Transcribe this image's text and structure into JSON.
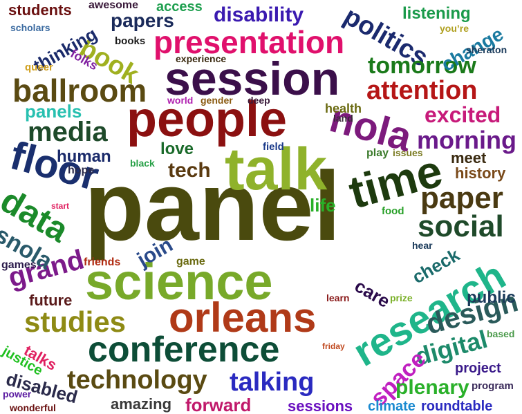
{
  "words": [
    {
      "text": "panel",
      "color": "#4a4a0e",
      "rotate": 0
    },
    {
      "text": "talk",
      "color": "#8fb22b",
      "rotate": 0
    },
    {
      "text": "people",
      "color": "#8b1010",
      "rotate": 0
    },
    {
      "text": "session",
      "color": "#3b0f4a",
      "rotate": 0
    },
    {
      "text": "science",
      "color": "#78a92a",
      "rotate": 0
    },
    {
      "text": "orleans",
      "color": "#b03a18",
      "rotate": 0
    },
    {
      "text": "research",
      "color": "#1fb58a",
      "rotate": -30
    },
    {
      "text": "time",
      "color": "#1d3a0e",
      "rotate": -15
    },
    {
      "text": "presentation",
      "color": "#e0106c",
      "rotate": 0
    },
    {
      "text": "conference",
      "color": "#0d4d37",
      "rotate": 0
    },
    {
      "text": "floor",
      "color": "#1a2f6e",
      "rotate": 15
    },
    {
      "text": "nola",
      "color": "#7c1a7c",
      "rotate": 15
    },
    {
      "text": "ballroom",
      "color": "#5a4a12",
      "rotate": 0
    },
    {
      "text": "attention",
      "color": "#b51616",
      "rotate": 0
    },
    {
      "text": "data",
      "color": "#1b8a2a",
      "rotate": 30
    },
    {
      "text": "studies",
      "color": "#8e8a14",
      "rotate": 0
    },
    {
      "text": "media",
      "color": "#1e4a2a",
      "rotate": 0
    },
    {
      "text": "paper",
      "color": "#4a3a12",
      "rotate": 0
    },
    {
      "text": "social",
      "color": "#1f4a2a",
      "rotate": 0
    },
    {
      "text": "technology",
      "color": "#5a4a12",
      "rotate": 0
    },
    {
      "text": "talking",
      "color": "#2a2ac0",
      "rotate": 0
    },
    {
      "text": "design",
      "color": "#2a5a5a",
      "rotate": -15
    },
    {
      "text": "digital",
      "color": "#1d8a6a",
      "rotate": -15
    },
    {
      "text": "politics",
      "color": "#1b2a6e",
      "rotate": 30
    },
    {
      "text": "morning",
      "color": "#6a1a8a",
      "rotate": 0
    },
    {
      "text": "excited",
      "color": "#c71a7a",
      "rotate": 0
    },
    {
      "text": "tomorrow",
      "color": "#1a7a1a",
      "rotate": 0
    },
    {
      "text": "grand",
      "color": "#7c1a8a",
      "rotate": -15
    },
    {
      "text": "snola",
      "color": "#2a5a6a",
      "rotate": 30
    },
    {
      "text": "book",
      "color": "#a0b020",
      "rotate": 30
    },
    {
      "text": "space",
      "color": "#c020c0",
      "rotate": -45
    },
    {
      "text": "plenary",
      "color": "#2ab02a",
      "rotate": 0
    },
    {
      "text": "forward",
      "color": "#c0186a",
      "rotate": 0
    },
    {
      "text": "amazing",
      "color": "#3a3a3a",
      "rotate": 0
    },
    {
      "text": "disabled",
      "color": "#2a2a4a",
      "rotate": 15
    },
    {
      "text": "disability",
      "color": "#3a1ab0",
      "rotate": 0
    },
    {
      "text": "papers",
      "color": "#1a2a5a",
      "rotate": 0
    },
    {
      "text": "thinking",
      "color": "#1a2a6a",
      "rotate": -30
    },
    {
      "text": "students",
      "color": "#6a1010",
      "rotate": 0
    },
    {
      "text": "change",
      "color": "#1a7aa0",
      "rotate": -30
    },
    {
      "text": "listening",
      "color": "#1a9a4a",
      "rotate": 0
    },
    {
      "text": "panels",
      "color": "#28c0b0",
      "rotate": 0
    },
    {
      "text": "human",
      "color": "#1a2a6a",
      "rotate": 0
    },
    {
      "text": "love",
      "color": "#1a6a2a",
      "rotate": 0
    },
    {
      "text": "tech",
      "color": "#5a3a10",
      "rotate": 0
    },
    {
      "text": "meet",
      "color": "#3a2a10",
      "rotate": 0
    },
    {
      "text": "history",
      "color": "#7a4a1a",
      "rotate": 0
    },
    {
      "text": "life",
      "color": "#28b028",
      "rotate": 0
    },
    {
      "text": "join",
      "color": "#2a4a8a",
      "rotate": -30
    },
    {
      "text": "check",
      "color": "#1a6a6a",
      "rotate": -30
    },
    {
      "text": "care",
      "color": "#2a0a4a",
      "rotate": 30
    },
    {
      "text": "public",
      "color": "#1a3a5a",
      "rotate": 0
    },
    {
      "text": "project",
      "color": "#3a1a8a",
      "rotate": 0
    },
    {
      "text": "sessions",
      "color": "#6a10c0",
      "rotate": 0
    },
    {
      "text": "climate",
      "color": "#1a8ad0",
      "rotate": 0
    },
    {
      "text": "roundtable",
      "color": "#2a2ac0",
      "rotate": 0
    },
    {
      "text": "future",
      "color": "#5a1a1a",
      "rotate": 0
    },
    {
      "text": "talks",
      "color": "#e02060",
      "rotate": 30
    },
    {
      "text": "justice",
      "color": "#20c020",
      "rotate": 30
    },
    {
      "text": "health",
      "color": "#6a6a10",
      "rotate": 0
    },
    {
      "text": "access",
      "color": "#20a050",
      "rotate": 0
    },
    {
      "text": "awesome",
      "color": "#3a1a3a",
      "rotate": 0
    },
    {
      "text": "scholars",
      "color": "#3a6aa0",
      "rotate": 0
    },
    {
      "text": "queer",
      "color": "#d0a020",
      "rotate": 0
    },
    {
      "text": "folks",
      "color": "#8020a0",
      "rotate": 30
    },
    {
      "text": "books",
      "color": "#1a1a1a",
      "rotate": 0
    },
    {
      "text": "experience",
      "color": "#3a2a10",
      "rotate": 0
    },
    {
      "text": "world",
      "color": "#b020b0",
      "rotate": 0
    },
    {
      "text": "gender",
      "color": "#8a5a10",
      "rotate": 0
    },
    {
      "text": "deep",
      "color": "#3a1a3a",
      "rotate": 0
    },
    {
      "text": "land",
      "color": "#3a2a3a",
      "rotate": 0
    },
    {
      "text": "field",
      "color": "#1a3a8a",
      "rotate": 0
    },
    {
      "text": "play",
      "color": "#3a7a2a",
      "rotate": 0
    },
    {
      "text": "issues",
      "color": "#7a7a20",
      "rotate": 0
    },
    {
      "text": "hope",
      "color": "#2a2a4a",
      "rotate": 0
    },
    {
      "text": "black",
      "color": "#28a048",
      "rotate": 0
    },
    {
      "text": "start",
      "color": "#e02060",
      "rotate": 0
    },
    {
      "text": "games",
      "color": "#2a1a4a",
      "rotate": 0
    },
    {
      "text": "friends",
      "color": "#b02a10",
      "rotate": 0
    },
    {
      "text": "game",
      "color": "#6a6a10",
      "rotate": 0
    },
    {
      "text": "food",
      "color": "#28a028",
      "rotate": 0
    },
    {
      "text": "hear",
      "color": "#1a3a5a",
      "rotate": 0
    },
    {
      "text": "learn",
      "color": "#8a1a1a",
      "rotate": 0
    },
    {
      "text": "prize",
      "color": "#7ab028",
      "rotate": 0
    },
    {
      "text": "based",
      "color": "#4a9a4a",
      "rotate": 0
    },
    {
      "text": "friday",
      "color": "#c04a20",
      "rotate": 0
    },
    {
      "text": "program",
      "color": "#3a2a5a",
      "rotate": 0
    },
    {
      "text": "power",
      "color": "#5a1aa0",
      "rotate": 0
    },
    {
      "text": "wonderful",
      "color": "#6a1010",
      "rotate": 0
    },
    {
      "text": "you’re",
      "color": "#b0a020",
      "rotate": 0
    },
    {
      "text": "sheraton",
      "color": "#1a3a5a",
      "rotate": 0
    }
  ]
}
